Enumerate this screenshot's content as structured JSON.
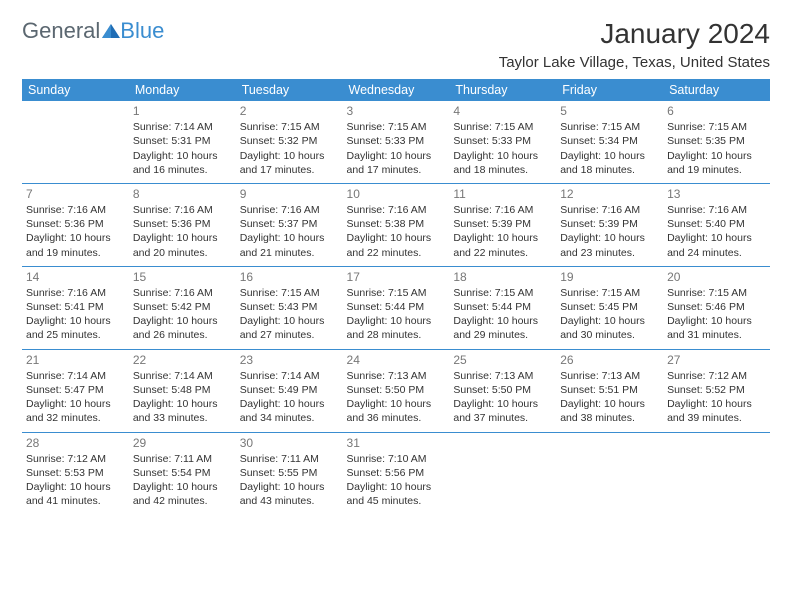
{
  "logo": {
    "text1": "General",
    "text2": "Blue"
  },
  "title": "January 2024",
  "location": "Taylor Lake Village, Texas, United States",
  "colors": {
    "header_bg": "#3a8dd0",
    "header_text": "#ffffff",
    "daynum": "#777777",
    "cell_text": "#333333",
    "rule": "#3a8dd0",
    "logo_gray": "#5b6770",
    "logo_blue": "#3a8dd0",
    "background": "#ffffff"
  },
  "typography": {
    "title_fontsize": 28,
    "location_fontsize": 15,
    "header_fontsize": 12.5,
    "daynum_fontsize": 12,
    "cell_fontsize": 10.5
  },
  "day_headers": [
    "Sunday",
    "Monday",
    "Tuesday",
    "Wednesday",
    "Thursday",
    "Friday",
    "Saturday"
  ],
  "weeks": [
    [
      null,
      {
        "n": "1",
        "sr": "Sunrise: 7:14 AM",
        "ss": "Sunset: 5:31 PM",
        "d1": "Daylight: 10 hours",
        "d2": "and 16 minutes."
      },
      {
        "n": "2",
        "sr": "Sunrise: 7:15 AM",
        "ss": "Sunset: 5:32 PM",
        "d1": "Daylight: 10 hours",
        "d2": "and 17 minutes."
      },
      {
        "n": "3",
        "sr": "Sunrise: 7:15 AM",
        "ss": "Sunset: 5:33 PM",
        "d1": "Daylight: 10 hours",
        "d2": "and 17 minutes."
      },
      {
        "n": "4",
        "sr": "Sunrise: 7:15 AM",
        "ss": "Sunset: 5:33 PM",
        "d1": "Daylight: 10 hours",
        "d2": "and 18 minutes."
      },
      {
        "n": "5",
        "sr": "Sunrise: 7:15 AM",
        "ss": "Sunset: 5:34 PM",
        "d1": "Daylight: 10 hours",
        "d2": "and 18 minutes."
      },
      {
        "n": "6",
        "sr": "Sunrise: 7:15 AM",
        "ss": "Sunset: 5:35 PM",
        "d1": "Daylight: 10 hours",
        "d2": "and 19 minutes."
      }
    ],
    [
      {
        "n": "7",
        "sr": "Sunrise: 7:16 AM",
        "ss": "Sunset: 5:36 PM",
        "d1": "Daylight: 10 hours",
        "d2": "and 19 minutes."
      },
      {
        "n": "8",
        "sr": "Sunrise: 7:16 AM",
        "ss": "Sunset: 5:36 PM",
        "d1": "Daylight: 10 hours",
        "d2": "and 20 minutes."
      },
      {
        "n": "9",
        "sr": "Sunrise: 7:16 AM",
        "ss": "Sunset: 5:37 PM",
        "d1": "Daylight: 10 hours",
        "d2": "and 21 minutes."
      },
      {
        "n": "10",
        "sr": "Sunrise: 7:16 AM",
        "ss": "Sunset: 5:38 PM",
        "d1": "Daylight: 10 hours",
        "d2": "and 22 minutes."
      },
      {
        "n": "11",
        "sr": "Sunrise: 7:16 AM",
        "ss": "Sunset: 5:39 PM",
        "d1": "Daylight: 10 hours",
        "d2": "and 22 minutes."
      },
      {
        "n": "12",
        "sr": "Sunrise: 7:16 AM",
        "ss": "Sunset: 5:39 PM",
        "d1": "Daylight: 10 hours",
        "d2": "and 23 minutes."
      },
      {
        "n": "13",
        "sr": "Sunrise: 7:16 AM",
        "ss": "Sunset: 5:40 PM",
        "d1": "Daylight: 10 hours",
        "d2": "and 24 minutes."
      }
    ],
    [
      {
        "n": "14",
        "sr": "Sunrise: 7:16 AM",
        "ss": "Sunset: 5:41 PM",
        "d1": "Daylight: 10 hours",
        "d2": "and 25 minutes."
      },
      {
        "n": "15",
        "sr": "Sunrise: 7:16 AM",
        "ss": "Sunset: 5:42 PM",
        "d1": "Daylight: 10 hours",
        "d2": "and 26 minutes."
      },
      {
        "n": "16",
        "sr": "Sunrise: 7:15 AM",
        "ss": "Sunset: 5:43 PM",
        "d1": "Daylight: 10 hours",
        "d2": "and 27 minutes."
      },
      {
        "n": "17",
        "sr": "Sunrise: 7:15 AM",
        "ss": "Sunset: 5:44 PM",
        "d1": "Daylight: 10 hours",
        "d2": "and 28 minutes."
      },
      {
        "n": "18",
        "sr": "Sunrise: 7:15 AM",
        "ss": "Sunset: 5:44 PM",
        "d1": "Daylight: 10 hours",
        "d2": "and 29 minutes."
      },
      {
        "n": "19",
        "sr": "Sunrise: 7:15 AM",
        "ss": "Sunset: 5:45 PM",
        "d1": "Daylight: 10 hours",
        "d2": "and 30 minutes."
      },
      {
        "n": "20",
        "sr": "Sunrise: 7:15 AM",
        "ss": "Sunset: 5:46 PM",
        "d1": "Daylight: 10 hours",
        "d2": "and 31 minutes."
      }
    ],
    [
      {
        "n": "21",
        "sr": "Sunrise: 7:14 AM",
        "ss": "Sunset: 5:47 PM",
        "d1": "Daylight: 10 hours",
        "d2": "and 32 minutes."
      },
      {
        "n": "22",
        "sr": "Sunrise: 7:14 AM",
        "ss": "Sunset: 5:48 PM",
        "d1": "Daylight: 10 hours",
        "d2": "and 33 minutes."
      },
      {
        "n": "23",
        "sr": "Sunrise: 7:14 AM",
        "ss": "Sunset: 5:49 PM",
        "d1": "Daylight: 10 hours",
        "d2": "and 34 minutes."
      },
      {
        "n": "24",
        "sr": "Sunrise: 7:13 AM",
        "ss": "Sunset: 5:50 PM",
        "d1": "Daylight: 10 hours",
        "d2": "and 36 minutes."
      },
      {
        "n": "25",
        "sr": "Sunrise: 7:13 AM",
        "ss": "Sunset: 5:50 PM",
        "d1": "Daylight: 10 hours",
        "d2": "and 37 minutes."
      },
      {
        "n": "26",
        "sr": "Sunrise: 7:13 AM",
        "ss": "Sunset: 5:51 PM",
        "d1": "Daylight: 10 hours",
        "d2": "and 38 minutes."
      },
      {
        "n": "27",
        "sr": "Sunrise: 7:12 AM",
        "ss": "Sunset: 5:52 PM",
        "d1": "Daylight: 10 hours",
        "d2": "and 39 minutes."
      }
    ],
    [
      {
        "n": "28",
        "sr": "Sunrise: 7:12 AM",
        "ss": "Sunset: 5:53 PM",
        "d1": "Daylight: 10 hours",
        "d2": "and 41 minutes."
      },
      {
        "n": "29",
        "sr": "Sunrise: 7:11 AM",
        "ss": "Sunset: 5:54 PM",
        "d1": "Daylight: 10 hours",
        "d2": "and 42 minutes."
      },
      {
        "n": "30",
        "sr": "Sunrise: 7:11 AM",
        "ss": "Sunset: 5:55 PM",
        "d1": "Daylight: 10 hours",
        "d2": "and 43 minutes."
      },
      {
        "n": "31",
        "sr": "Sunrise: 7:10 AM",
        "ss": "Sunset: 5:56 PM",
        "d1": "Daylight: 10 hours",
        "d2": "and 45 minutes."
      },
      null,
      null,
      null
    ]
  ]
}
